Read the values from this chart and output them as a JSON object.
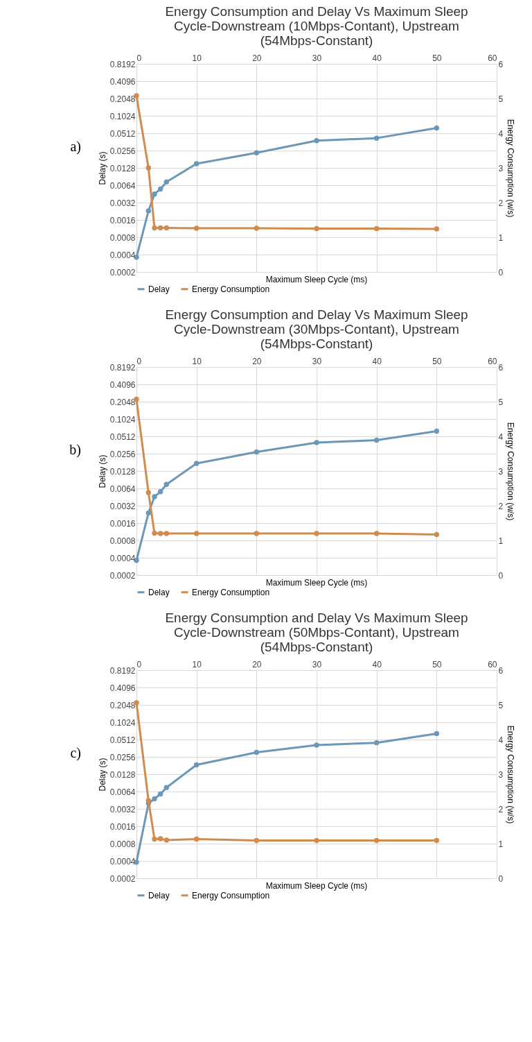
{
  "chart_data": [
    {
      "type": "line",
      "title": "Energy Consumption and Delay Vs Maximum Sleep Cycle-Downstream (10Mbps-Contant), Upstream (54Mbps-Constant)",
      "xlabel": "Maximum Sleep Cycle (ms)",
      "ylabel": "Delay (s)",
      "y2label": "Energy Consumption (w/s)",
      "annotations": [
        "a)"
      ],
      "x": [
        0,
        2,
        3,
        4,
        5,
        10,
        20,
        30,
        40,
        50
      ],
      "xlim": [
        0,
        60
      ],
      "xticks": [
        0,
        10,
        20,
        30,
        40,
        50,
        60
      ],
      "ylim": [
        0.0002,
        0.8192
      ],
      "yticks": [
        0.0002,
        0.0004,
        0.0008,
        0.0016,
        0.0032,
        0.0064,
        0.0128,
        0.0256,
        0.0512,
        0.1024,
        0.2048,
        0.4096,
        0.8192
      ],
      "y2lim": [
        0,
        6
      ],
      "y2ticks": [
        0,
        1,
        2,
        3,
        4,
        5,
        6
      ],
      "log": "y",
      "grid": true,
      "legend": "bottom",
      "marker": "circle",
      "line_style": "solid",
      "series": [
        {
          "name": "Delay",
          "color": "#6b97b8",
          "values": [
            0.00036,
            0.0023,
            0.0045,
            0.0055,
            0.0073,
            0.0151,
            0.0234,
            0.038,
            0.042,
            0.063
          ]
        },
        {
          "name": "Energy Consumption",
          "color": "#d08b4f",
          "axis": "y2",
          "values": [
            5.08,
            3.0,
            1.27,
            1.27,
            1.27,
            1.26,
            1.26,
            1.25,
            1.25,
            1.24
          ]
        }
      ]
    },
    {
      "type": "line",
      "title": "Energy Consumption and Delay Vs Maximum Sleep Cycle-Downstream (30Mbps-Contant), Upstream (54Mbps-Constant)",
      "xlabel": "Maximum Sleep Cycle (ms)",
      "ylabel": "Delay (s)",
      "y2label": "Energy Consumption (w/s)",
      "annotations": [
        "b)"
      ],
      "x": [
        0,
        2,
        3,
        4,
        5,
        10,
        20,
        30,
        40,
        50
      ],
      "xlim": [
        0,
        60
      ],
      "xticks": [
        0,
        10,
        20,
        30,
        40,
        50,
        60
      ],
      "ylim": [
        0.0002,
        0.8192
      ],
      "yticks": [
        0.0002,
        0.0004,
        0.0008,
        0.0016,
        0.0032,
        0.0064,
        0.0128,
        0.0256,
        0.0512,
        0.1024,
        0.2048,
        0.4096,
        0.8192
      ],
      "y2lim": [
        0,
        6
      ],
      "y2ticks": [
        0,
        1,
        2,
        3,
        4,
        5,
        6
      ],
      "log": "y",
      "grid": true,
      "legend": "bottom",
      "marker": "circle",
      "line_style": "solid",
      "series": [
        {
          "name": "Delay",
          "color": "#6b97b8",
          "values": [
            0.00036,
            0.0024,
            0.0046,
            0.0056,
            0.0075,
            0.0174,
            0.0274,
            0.04,
            0.044,
            0.063
          ]
        },
        {
          "name": "Energy Consumption",
          "color": "#d08b4f",
          "axis": "y2",
          "values": [
            5.07,
            2.38,
            1.21,
            1.2,
            1.2,
            1.2,
            1.2,
            1.2,
            1.2,
            1.17
          ]
        }
      ]
    },
    {
      "type": "line",
      "title": "Energy Consumption and Delay Vs Maximum Sleep Cycle-Downstream (50Mbps-Contant), Upstream (54Mbps-Constant)",
      "xlabel": "Maximum Sleep Cycle (ms)",
      "ylabel": "Delay (s)",
      "y2label": "Energy Consumption (w/s)",
      "annotations": [
        "c)"
      ],
      "x": [
        0,
        2,
        3,
        4,
        5,
        10,
        20,
        30,
        40,
        50
      ],
      "xlim": [
        0,
        60
      ],
      "xticks": [
        0,
        10,
        20,
        30,
        40,
        50,
        60
      ],
      "ylim": [
        0.0002,
        0.8192
      ],
      "yticks": [
        0.0002,
        0.0004,
        0.0008,
        0.0016,
        0.0032,
        0.0064,
        0.0128,
        0.0256,
        0.0512,
        0.1024,
        0.2048,
        0.4096,
        0.8192
      ],
      "y2lim": [
        0,
        6
      ],
      "y2ticks": [
        0,
        1,
        2,
        3,
        4,
        5,
        6
      ],
      "log": "y",
      "grid": true,
      "legend": "bottom",
      "marker": "circle",
      "line_style": "solid",
      "series": [
        {
          "name": "Delay",
          "color": "#6b97b8",
          "values": [
            0.00038,
            0.004,
            0.0048,
            0.0058,
            0.0075,
            0.0186,
            0.0307,
            0.041,
            0.045,
            0.065
          ]
        },
        {
          "name": "Energy Consumption",
          "color": "#d08b4f",
          "axis": "y2",
          "values": [
            5.06,
            2.24,
            1.13,
            1.14,
            1.1,
            1.13,
            1.09,
            1.09,
            1.09,
            1.09
          ]
        }
      ]
    }
  ]
}
